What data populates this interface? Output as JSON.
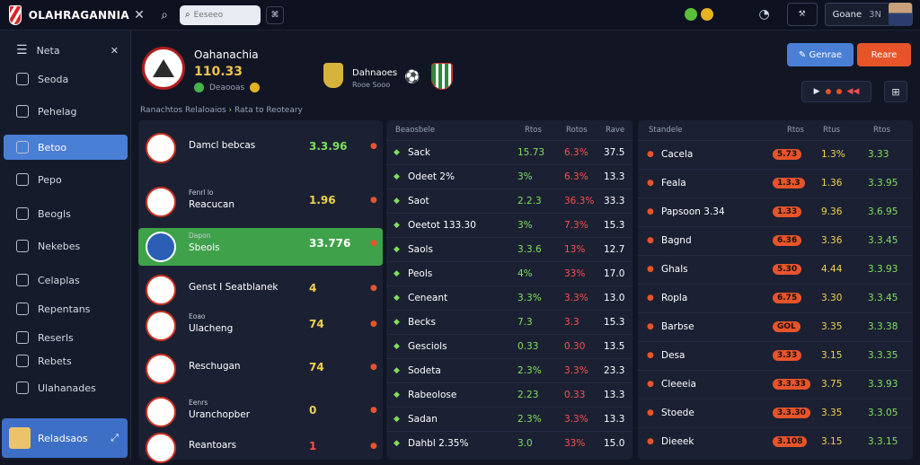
{
  "app": {
    "brand": "OLAHRAGANNIA",
    "search_placeholder": "Eeseeo"
  },
  "topbar": {
    "user_label": "Goane",
    "user_count": "3N"
  },
  "sidebar": {
    "header": "Neta",
    "items": [
      "Seoda",
      "Pehelag",
      "Betoo",
      "Pepo",
      "Beogls",
      "Nekebes",
      "Celaplas",
      "Repentans",
      "Reserls",
      "Rebets",
      "Ulahanades"
    ],
    "active_index": 2,
    "footer": "Reladsaos"
  },
  "match": {
    "team_name": "Oahanachia",
    "score": "110.33",
    "meta": "Deaooas",
    "opponent_title": "Dahnaoes",
    "opponent_sub": "Rooe Sooo",
    "breadcrumb": "Ranachtos Relaloaios",
    "breadcrumb_tail": "Rata to Reoteary",
    "btn_primary": "Genrae",
    "btn_secondary": "Reare"
  },
  "left_list": [
    {
      "title": "Damcl bebcas",
      "sub": "",
      "value": "3.3.96",
      "color": "g",
      "badge": "5"
    },
    {
      "title": "Reacucan",
      "sub": "Fenrl lo",
      "value": "1.96",
      "color": "y",
      "badge": ""
    },
    {
      "title": "Sbeols",
      "sub": "Dapon",
      "value": "33.776",
      "color": "w",
      "badge": ""
    },
    {
      "title": "Genst I Seatblanek",
      "sub": "",
      "value": "4",
      "color": "y",
      "badge": ""
    },
    {
      "title": "Ulacheng",
      "sub": "Eoao",
      "value": "74",
      "color": "y",
      "badge": ""
    },
    {
      "title": "Reschugan",
      "sub": "",
      "value": "74",
      "color": "y",
      "badge": ""
    },
    {
      "title": "Uranchopber",
      "sub": "Eenrs",
      "value": "0",
      "color": "y",
      "badge": ""
    },
    {
      "title": "Reantoars",
      "sub": "",
      "value": "1",
      "color": "r",
      "badge": ""
    }
  ],
  "mid_table": {
    "headers": [
      "Beaosbele",
      "Rtos",
      "Rotos",
      "Rave"
    ],
    "rows": [
      {
        "name": "Sack",
        "a": "15.73",
        "b": "6.3%",
        "c": "37.5"
      },
      {
        "name": "Odeet 2%",
        "a": "3%",
        "b": "6.3%",
        "c": "13.3"
      },
      {
        "name": "Saot",
        "a": "2.2.3",
        "b": "36.3%",
        "c": "33.3"
      },
      {
        "name": "Oeetot 133.30",
        "a": "3%",
        "b": "7.3%",
        "c": "15.3"
      },
      {
        "name": "Saols",
        "a": "3.3.6",
        "b": "13%",
        "c": "12.7"
      },
      {
        "name": "Peols",
        "a": "4%",
        "b": "33%",
        "c": "17.0"
      },
      {
        "name": "Ceneant",
        "a": "3.3%",
        "b": "3.3%",
        "c": "13.0"
      },
      {
        "name": "Becks",
        "a": "7.3",
        "b": "3.3",
        "c": "15.3"
      },
      {
        "name": "Gesciols",
        "a": "0.33",
        "b": "0.30",
        "c": "13.5"
      },
      {
        "name": "Sodeta",
        "a": "2.3%",
        "b": "3.3%",
        "c": "23.3"
      },
      {
        "name": "Rabeolose",
        "a": "2.23",
        "b": "0.33",
        "c": "13.3"
      },
      {
        "name": "Sadan",
        "a": "2.3%",
        "b": "3.3%",
        "c": "13.3"
      },
      {
        "name": "Dahbl 2.35%",
        "a": "3.0",
        "b": "33%",
        "c": "15.0"
      }
    ]
  },
  "right_table": {
    "headers": [
      "Standele",
      "Rtos",
      "Rtus",
      "Rtos"
    ],
    "rows": [
      {
        "name": "Cacela",
        "a": "5.73",
        "b": "1.3%",
        "c": "3.33"
      },
      {
        "name": "Feala",
        "a": "1.3.3",
        "b": "1.36",
        "c": "3.3.95"
      },
      {
        "name": "Papsoon 3.34",
        "a": "1.33",
        "b": "9.36",
        "c": "3.6.95"
      },
      {
        "name": "Bagnd",
        "a": "6.36",
        "b": "3.36",
        "c": "3.3.45"
      },
      {
        "name": "Ghals",
        "a": "5.30",
        "b": "4.44",
        "c": "3.3.93"
      },
      {
        "name": "Ropla",
        "a": "6.75",
        "b": "3.30",
        "c": "3.3.45"
      },
      {
        "name": "Barbse",
        "a": "GOL",
        "b": "3.35",
        "c": "3.3.38"
      },
      {
        "name": "Desa",
        "a": "3.33",
        "b": "3.15",
        "c": "3.3.35"
      },
      {
        "name": "Cleeeia",
        "a": "3.3.33",
        "b": "3.75",
        "c": "3.3.93"
      },
      {
        "name": "Stoede",
        "a": "3.3.30",
        "b": "3.35",
        "c": "3.3.05"
      },
      {
        "name": "Dieeek",
        "a": "3.108",
        "b": "3.15",
        "c": "3.3.15"
      }
    ]
  }
}
